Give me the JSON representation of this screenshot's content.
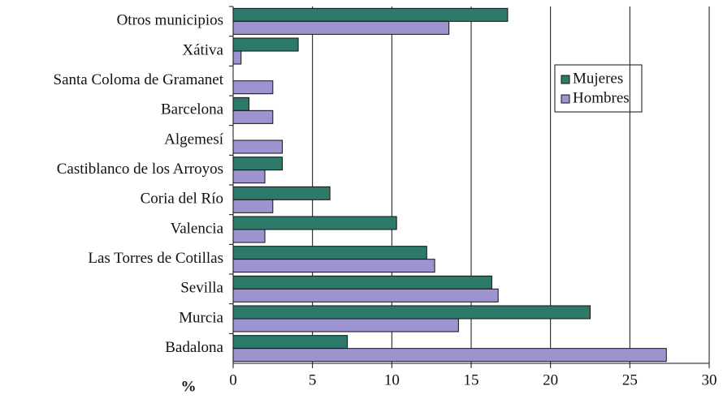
{
  "chart_data": {
    "type": "bar",
    "orientation": "horizontal",
    "x_label": "%",
    "categories": [
      "Otros municipios",
      "Xátiva",
      "Santa Coloma de Gramanet",
      "Barcelona",
      "Algemesí",
      "Castiblanco de los Arroyos",
      "Coria del Río",
      "Valencia",
      "Las Torres de Cotillas",
      "Sevilla",
      "Murcia",
      "Badalona"
    ],
    "series": [
      {
        "name": "Mujeres",
        "color": "#2e7a6a",
        "values": [
          17.3,
          4.1,
          0,
          1.0,
          0,
          3.1,
          6.1,
          10.3,
          12.2,
          16.3,
          22.5,
          7.2
        ]
      },
      {
        "name": "Hombres",
        "color": "#9d93cf",
        "values": [
          13.6,
          0.5,
          2.5,
          2.5,
          3.1,
          2.0,
          2.5,
          2.0,
          12.7,
          16.7,
          14.2,
          27.3
        ]
      }
    ],
    "xlim": [
      0,
      30
    ],
    "xticks": [
      0,
      5,
      10,
      15,
      20,
      25,
      30
    ],
    "grid": true
  }
}
